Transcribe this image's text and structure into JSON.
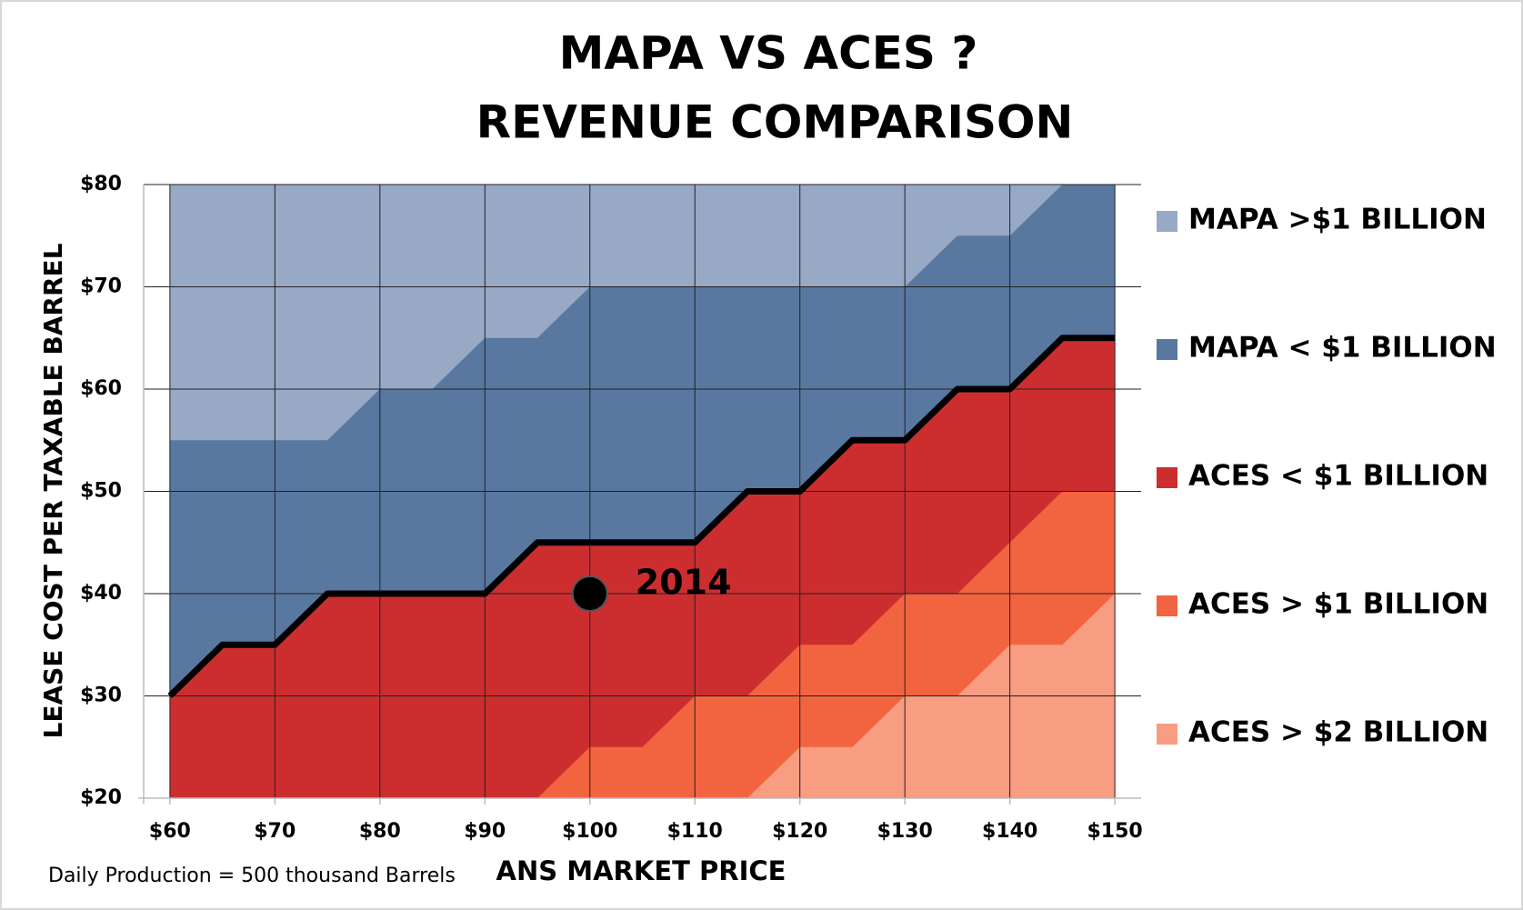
{
  "chart_data": {
    "type": "area",
    "title": [
      "MAPA VS ACES ?",
      "REVENUE COMPARISON"
    ],
    "xlabel": "ANS MARKET PRICE",
    "ylabel": "LEASE COST PER TAXABLE BARREL",
    "footnote": "Daily Production = 500 thousand Barrels",
    "x": [
      60,
      65,
      70,
      75,
      80,
      85,
      90,
      95,
      100,
      105,
      110,
      115,
      120,
      125,
      130,
      135,
      140,
      145,
      150
    ],
    "series": [
      {
        "name": "MAPA >$1 BILLION",
        "color": "#97a9c5"
      },
      {
        "name": "MAPA < $1 BILLION",
        "color": "#5878a0",
        "values": [
          55,
          55,
          55,
          55,
          60,
          60,
          65,
          65,
          70,
          70,
          70,
          70,
          70,
          70,
          70,
          75,
          75,
          80,
          80
        ]
      },
      {
        "name": "ACES < $1 BILLION",
        "color": "#cc2e30",
        "line_color": "#000000",
        "values": [
          30,
          35,
          35,
          40,
          40,
          40,
          40,
          45,
          45,
          45,
          45,
          50,
          50,
          55,
          55,
          60,
          60,
          65,
          65
        ]
      },
      {
        "name": "ACES > $1 BILLION",
        "color": "#f26440",
        "values": [
          20,
          20,
          20,
          20,
          20,
          20,
          20,
          20,
          25,
          25,
          30,
          30,
          35,
          35,
          40,
          40,
          45,
          50,
          50
        ]
      },
      {
        "name": "ACES > $2 BILLION",
        "color": "#f89c82",
        "values": [
          20,
          20,
          20,
          20,
          20,
          20,
          20,
          20,
          20,
          20,
          20,
          20,
          25,
          25,
          30,
          30,
          35,
          35,
          40
        ]
      }
    ],
    "annotations": [
      {
        "text": "2014",
        "x": 100,
        "y": 40
      }
    ],
    "xlim": [
      57.5,
      152.5
    ],
    "ylim": [
      20,
      80
    ],
    "xticks": [
      {
        "value": 60,
        "label": "$60"
      },
      {
        "value": 70,
        "label": "$70"
      },
      {
        "value": 80,
        "label": "$80"
      },
      {
        "value": 90,
        "label": "$90"
      },
      {
        "value": 100,
        "label": "$100"
      },
      {
        "value": 110,
        "label": "$110"
      },
      {
        "value": 120,
        "label": "$120"
      },
      {
        "value": 130,
        "label": "$130"
      },
      {
        "value": 140,
        "label": "$140"
      },
      {
        "value": 150,
        "label": "$150"
      }
    ],
    "yticks": [
      {
        "value": 20,
        "label": "$20"
      },
      {
        "value": 30,
        "label": "$30"
      },
      {
        "value": 40,
        "label": "$40"
      },
      {
        "value": 50,
        "label": "$50"
      },
      {
        "value": 60,
        "label": "$60"
      },
      {
        "value": 70,
        "label": "$70"
      },
      {
        "value": 80,
        "label": "$80"
      }
    ],
    "grid": true,
    "legend": "right"
  }
}
